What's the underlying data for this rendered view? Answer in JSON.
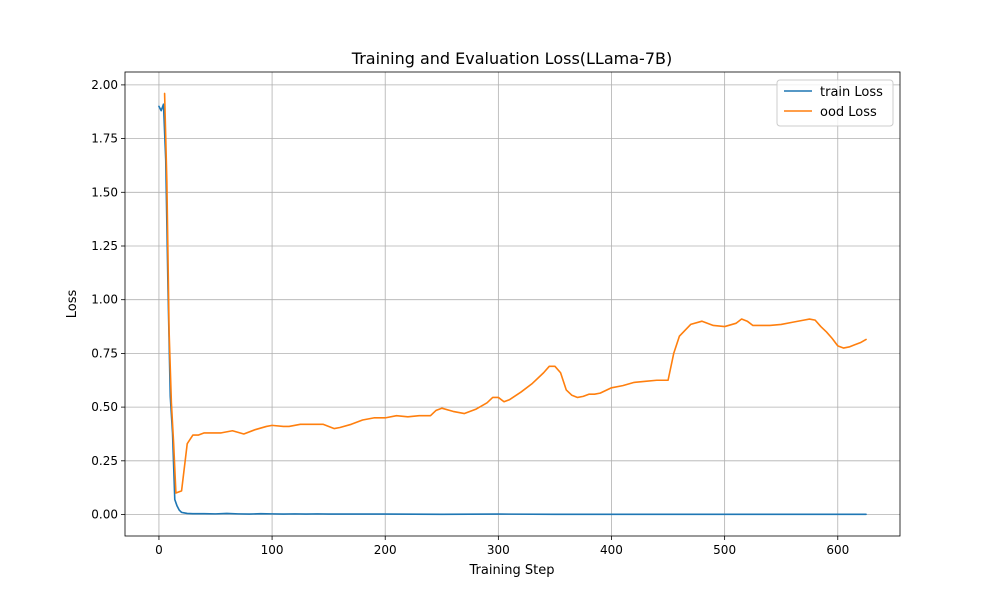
{
  "chart_data": {
    "type": "line",
    "title": "Training and Evaluation Loss(LLama-7B)",
    "xlabel": "Training Step",
    "ylabel": "Loss",
    "xlim": [
      -30,
      655
    ],
    "ylim": [
      -0.1,
      2.06
    ],
    "xticks": [
      0,
      100,
      200,
      300,
      400,
      500,
      600
    ],
    "xtick_labels": [
      "0",
      "100",
      "200",
      "300",
      "400",
      "500",
      "600"
    ],
    "yticks": [
      0.0,
      0.25,
      0.5,
      0.75,
      1.0,
      1.25,
      1.5,
      1.75,
      2.0
    ],
    "ytick_labels": [
      "0.00",
      "0.25",
      "0.50",
      "0.75",
      "1.00",
      "1.25",
      "1.50",
      "1.75",
      "2.00"
    ],
    "grid": true,
    "legend_position": "top-right",
    "series": [
      {
        "name": "train Loss",
        "color": "#1f77b4",
        "x": [
          0,
          2,
          4,
          6,
          8,
          10,
          12,
          14,
          16,
          18,
          20,
          22,
          25,
          30,
          40,
          50,
          60,
          70,
          80,
          90,
          100,
          110,
          120,
          130,
          140,
          150,
          160,
          200,
          250,
          300,
          350,
          400,
          450,
          500,
          550,
          600,
          625
        ],
        "y": [
          1.9,
          1.88,
          1.91,
          1.65,
          1.05,
          0.55,
          0.38,
          0.07,
          0.04,
          0.02,
          0.01,
          0.008,
          0.005,
          0.004,
          0.004,
          0.003,
          0.005,
          0.003,
          0.002,
          0.004,
          0.003,
          0.002,
          0.003,
          0.002,
          0.003,
          0.002,
          0.002,
          0.002,
          0.001,
          0.002,
          0.001,
          0.001,
          0.001,
          0.001,
          0.001,
          0.001,
          0.001
        ]
      },
      {
        "name": "ood Loss",
        "color": "#ff7f0e",
        "x": [
          5,
          7,
          9,
          11,
          13,
          15,
          20,
          25,
          30,
          35,
          40,
          50,
          55,
          65,
          75,
          85,
          95,
          100,
          110,
          115,
          125,
          135,
          145,
          155,
          160,
          170,
          180,
          190,
          200,
          210,
          220,
          230,
          240,
          245,
          250,
          260,
          270,
          280,
          290,
          295,
          300,
          305,
          310,
          320,
          330,
          340,
          345,
          350,
          355,
          360,
          365,
          370,
          375,
          380,
          385,
          390,
          400,
          410,
          420,
          430,
          440,
          450,
          455,
          460,
          470,
          480,
          490,
          500,
          510,
          515,
          520,
          525,
          530,
          540,
          550,
          560,
          570,
          575,
          580,
          585,
          590,
          595,
          600,
          605,
          610,
          615,
          620,
          625
        ],
        "y": [
          1.96,
          1.55,
          0.85,
          0.52,
          0.33,
          0.1,
          0.11,
          0.33,
          0.37,
          0.37,
          0.38,
          0.38,
          0.38,
          0.39,
          0.375,
          0.395,
          0.41,
          0.415,
          0.41,
          0.41,
          0.42,
          0.42,
          0.42,
          0.4,
          0.405,
          0.42,
          0.44,
          0.45,
          0.45,
          0.46,
          0.455,
          0.46,
          0.46,
          0.485,
          0.495,
          0.48,
          0.47,
          0.49,
          0.52,
          0.545,
          0.545,
          0.525,
          0.535,
          0.57,
          0.61,
          0.66,
          0.69,
          0.69,
          0.66,
          0.58,
          0.555,
          0.545,
          0.55,
          0.56,
          0.56,
          0.565,
          0.59,
          0.6,
          0.615,
          0.62,
          0.625,
          0.625,
          0.75,
          0.83,
          0.885,
          0.9,
          0.88,
          0.875,
          0.89,
          0.91,
          0.9,
          0.88,
          0.88,
          0.88,
          0.885,
          0.895,
          0.905,
          0.91,
          0.905,
          0.875,
          0.85,
          0.82,
          0.785,
          0.775,
          0.78,
          0.79,
          0.8,
          0.815
        ]
      }
    ]
  }
}
